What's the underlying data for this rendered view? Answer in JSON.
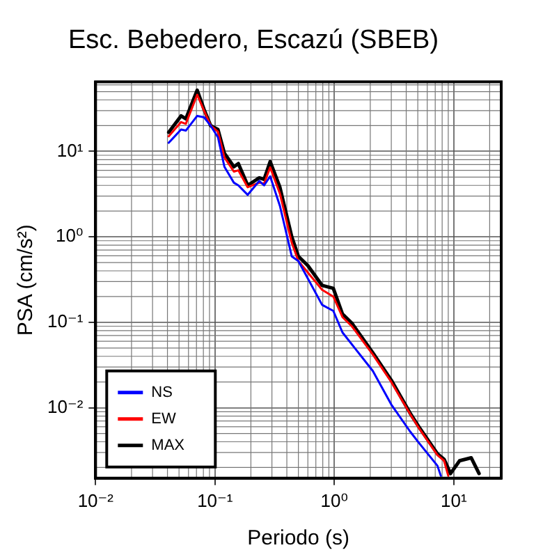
{
  "chart_data": {
    "type": "line",
    "title": "Esc. Bebedero, Escazú (SBEB)",
    "xlabel": "Periodo (s)",
    "ylabel": "PSA (cm/s²)",
    "log": "xy",
    "grid": true,
    "legend": "bottom left",
    "marker": "none",
    "line_style": "solid",
    "xlim": [
      0.01,
      25
    ],
    "xticks": [
      {
        "value": 0.01,
        "label": "10⁻²"
      },
      {
        "value": 0.1,
        "label": "10⁻¹"
      },
      {
        "value": 1,
        "label": "10⁰"
      },
      {
        "value": 10,
        "label": "10¹"
      }
    ],
    "ylim": [
      0.0015,
      65
    ],
    "yticks": [
      {
        "value": 0.01,
        "label": "10⁻²"
      },
      {
        "value": 0.1,
        "label": "10⁻¹"
      },
      {
        "value": 1,
        "label": "10⁰"
      },
      {
        "value": 10,
        "label": "10¹"
      }
    ],
    "series": [
      {
        "name": "NS",
        "color": "#0000ff",
        "x": [
          0.041,
          0.052,
          0.057,
          0.071,
          0.081,
          0.092,
          0.106,
          0.12,
          0.144,
          0.157,
          0.188,
          0.235,
          0.258,
          0.29,
          0.35,
          0.44,
          0.5,
          0.79,
          0.98,
          1.17,
          2.1,
          3.0,
          4.3,
          5.1,
          7.3,
          7.8
        ],
        "values": [
          12.6,
          18,
          17.5,
          26,
          25,
          20,
          14.6,
          6.6,
          4.3,
          4.0,
          3.1,
          4.5,
          4.0,
          5.1,
          2.3,
          0.59,
          0.52,
          0.16,
          0.136,
          0.076,
          0.027,
          0.0109,
          0.0053,
          0.0039,
          0.0021,
          0.0016
        ]
      },
      {
        "name": "EW",
        "color": "#ff0000",
        "x": [
          0.041,
          0.052,
          0.057,
          0.071,
          0.081,
          0.092,
          0.106,
          0.12,
          0.144,
          0.157,
          0.188,
          0.235,
          0.258,
          0.29,
          0.35,
          0.44,
          0.5,
          0.79,
          0.98,
          1.17,
          1.4,
          2.1,
          3.0,
          4.3,
          5.1,
          7.3,
          8.3,
          9.0
        ],
        "values": [
          15,
          22,
          21,
          46,
          30,
          20,
          17,
          8.5,
          5.8,
          6.0,
          3.8,
          4.3,
          4.2,
          6.5,
          3.2,
          0.85,
          0.52,
          0.24,
          0.2,
          0.115,
          0.09,
          0.042,
          0.02,
          0.0085,
          0.0058,
          0.0028,
          0.0024,
          0.0016
        ]
      },
      {
        "name": "MAX",
        "color": "#000000",
        "x": [
          0.041,
          0.052,
          0.057,
          0.071,
          0.081,
          0.092,
          0.106,
          0.12,
          0.144,
          0.157,
          0.188,
          0.235,
          0.258,
          0.29,
          0.35,
          0.44,
          0.5,
          0.6,
          0.79,
          0.98,
          1.17,
          1.4,
          2.1,
          3.0,
          4.3,
          5.1,
          7.3,
          8.3,
          9.4,
          11.2,
          14,
          16.3
        ],
        "values": [
          16.7,
          26,
          24,
          52,
          31,
          20,
          18,
          9.5,
          6.6,
          7.2,
          4.0,
          4.9,
          4.7,
          7.6,
          3.8,
          1.0,
          0.59,
          0.46,
          0.27,
          0.25,
          0.125,
          0.098,
          0.044,
          0.021,
          0.0087,
          0.006,
          0.0029,
          0.0025,
          0.0017,
          0.0024,
          0.0026,
          0.0017
        ]
      }
    ]
  }
}
